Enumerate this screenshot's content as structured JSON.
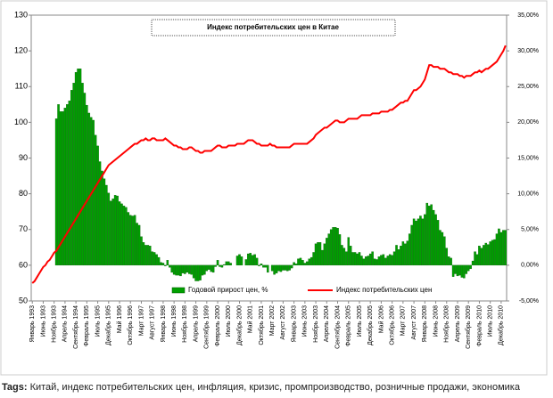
{
  "chart_data": {
    "type": "bar-line",
    "title": "Индекс потребительских цен в Китае",
    "categories": [
      "Январь 1993",
      null,
      null,
      null,
      null,
      "Июнь 1993",
      null,
      null,
      null,
      null,
      "Ноябрь 1993",
      null,
      null,
      null,
      null,
      "Апрель 1994",
      null,
      null,
      null,
      null,
      "Сентябрь 1994",
      null,
      null,
      null,
      null,
      "Февраль 1995",
      null,
      null,
      null,
      null,
      "Июль 1995",
      null,
      null,
      null,
      null,
      "Декабрь 1995",
      null,
      null,
      null,
      null,
      "Май 1996",
      null,
      null,
      null,
      null,
      "Октябрь 1996",
      null,
      null,
      null,
      null,
      "Март 1997",
      null,
      null,
      null,
      null,
      "Август 1997",
      null,
      null,
      null,
      null,
      "Январь 1998",
      null,
      null,
      null,
      null,
      "Июнь 1998",
      null,
      null,
      null,
      null,
      "Ноябрь 1998",
      null,
      null,
      null,
      null,
      "Апрель 1999",
      null,
      null,
      null,
      null,
      "Сентябрь 1999",
      null,
      null,
      null,
      null,
      "Февраль 2000",
      null,
      null,
      null,
      null,
      "Июль 2000",
      null,
      null,
      null,
      null,
      "Декабрь 2000",
      null,
      null,
      null,
      null,
      "Май 2001",
      null,
      null,
      null,
      null,
      "Октябрь 2001",
      null,
      null,
      null,
      null,
      "Март 2002",
      null,
      null,
      null,
      null,
      "Август 2002",
      null,
      null,
      null,
      null,
      "Январь 2003",
      null,
      null,
      null,
      null,
      "Июнь 2003",
      null,
      null,
      null,
      null,
      "Ноябрь 2003",
      null,
      null,
      null,
      null,
      "Апрель 2004",
      null,
      null,
      null,
      null,
      "Сентябрь 2004",
      null,
      null,
      null,
      null,
      "Февраль 2005",
      null,
      null,
      null,
      null,
      "Июль 2005",
      null,
      null,
      null,
      null,
      "Декабрь 2005",
      null,
      null,
      null,
      null,
      "Май 2006",
      null,
      null,
      null,
      null,
      "Октябрь 2006",
      null,
      null,
      null,
      null,
      "Март 2007",
      null,
      null,
      null,
      null,
      "Август 2007",
      null,
      null,
      null,
      null,
      "Январь 2008",
      null,
      null,
      null,
      null,
      "Июнь 2008",
      null,
      null,
      null,
      null,
      "Ноябрь 2008",
      null,
      null,
      null,
      null,
      "Апрель 2009",
      null,
      null,
      null,
      null,
      "Сентябрь 2009",
      null,
      null,
      null,
      null,
      "Февраль 2010",
      null,
      null,
      null,
      null,
      "Июль 2010",
      null,
      null,
      null,
      null,
      "Декабрь 2010",
      null,
      null
    ],
    "series": [
      {
        "name": "Годовой прирост цен, %",
        "type": "bar",
        "axis": "y2",
        "color": "#00a000",
        "values": [
          null,
          null,
          null,
          null,
          null,
          null,
          null,
          null,
          null,
          null,
          null,
          20.5,
          22.5,
          21.5,
          21.5,
          22,
          22.5,
          23,
          24.5,
          25.5,
          27,
          27.5,
          27.5,
          25.5,
          24.1,
          22.4,
          21.3,
          20.7,
          20.3,
          18.2,
          16.7,
          14.5,
          13.2,
          12.1,
          11.2,
          10.1,
          9,
          9.3,
          9.8,
          9.7,
          8.9,
          8.6,
          8.3,
          8.1,
          7.4,
          7,
          6.9,
          7,
          5.9,
          5.6,
          4,
          3.2,
          2.8,
          2.8,
          2.7,
          1.9,
          1.8,
          1.5,
          1.1,
          0.4,
          0.3,
          -0.1,
          0.7,
          -0.3,
          -1,
          -1.3,
          -1.4,
          -1.4,
          -1.5,
          -1.1,
          -1.2,
          -1,
          -1.2,
          -1.3,
          -1.8,
          -2.2,
          -2.2,
          -2.1,
          -1.4,
          -1.3,
          -0.8,
          -0.6,
          -0.9,
          -1,
          -0.2,
          0.7,
          -0.2,
          -0.3,
          0.1,
          0.5,
          0.5,
          0.3,
          0,
          0,
          1.3,
          1.5,
          1.2,
          0,
          0.8,
          1.6,
          1.7,
          1.4,
          1.5,
          1,
          -0.1,
          0.2,
          -0.3,
          -0.3,
          -1,
          0,
          -0.8,
          -1.3,
          -1.1,
          -0.8,
          -0.9,
          -0.7,
          -0.7,
          -0.8,
          -0.7,
          -0.4,
          0.4,
          0.2,
          0.9,
          1,
          0.7,
          0.3,
          0.5,
          0.9,
          1.1,
          1.8,
          3,
          3.2,
          3.2,
          2.1,
          3,
          3.8,
          4.4,
          5,
          5.3,
          5.3,
          5.2,
          4.3,
          2.8,
          2.4,
          1.9,
          3.9,
          2.7,
          1.8,
          1.8,
          1.6,
          1.8,
          1.3,
          0.9,
          1.2,
          1.3,
          1.6,
          1.9,
          0.9,
          0.8,
          1.2,
          1.4,
          1.5,
          1,
          1.3,
          1.5,
          1.4,
          1.9,
          2.8,
          2.2,
          2.7,
          3.3,
          3,
          3.4,
          4.4,
          5.6,
          6.5,
          6.2,
          6.5,
          6.9,
          6.5,
          7.1,
          8.7,
          8.3,
          8.5,
          7.7,
          7.1,
          6.3,
          4.9,
          4.6,
          4,
          2.4,
          1.2,
          1,
          -1.6,
          -1.2,
          -1.5,
          -1.4,
          -1.7,
          -1.8,
          -1.2,
          -0.8,
          -0.5,
          0.6,
          1.9,
          1.5,
          2.7,
          2.4,
          2.8,
          3.1,
          2.9,
          3.3,
          3.5,
          3.6,
          4.4,
          5.1,
          4.6,
          4.9,
          4.9
        ]
      },
      {
        "name": "Индекс потребительских цен",
        "type": "line",
        "axis": "y",
        "color": "#ff0000",
        "values": [
          55,
          55.5,
          56.5,
          57.5,
          58.5,
          59.5,
          60,
          61,
          61.5,
          62.5,
          63.5,
          64,
          65,
          66,
          67,
          68,
          69,
          70,
          71,
          72,
          73,
          74,
          75,
          76,
          77,
          78,
          79,
          80,
          81,
          82,
          83,
          84,
          85,
          86,
          87,
          88,
          88.5,
          89,
          89.5,
          90,
          90.5,
          91,
          91.5,
          92,
          92.5,
          93,
          93.5,
          94,
          94,
          94.5,
          95,
          95,
          95.5,
          95,
          95,
          95.5,
          95.5,
          95,
          95,
          95,
          95,
          95.5,
          95,
          94.5,
          94,
          93.5,
          93.5,
          93,
          93,
          92.5,
          92.5,
          92.5,
          93,
          93,
          92.5,
          92,
          92,
          91.5,
          91.5,
          92,
          92,
          92,
          92,
          92.5,
          93,
          93.5,
          93.5,
          93,
          93,
          93,
          93.5,
          93.5,
          93.5,
          93.5,
          94,
          94,
          94,
          94,
          94.5,
          95,
          95,
          95,
          94.5,
          94,
          94,
          93.5,
          93.5,
          93.5,
          93.5,
          94,
          93.5,
          93.5,
          93,
          93,
          93,
          93,
          93,
          93,
          93,
          93.5,
          94,
          94,
          94,
          94,
          94,
          94,
          94,
          94.5,
          95,
          95.5,
          96.5,
          97,
          97.5,
          98,
          98.5,
          98.5,
          99,
          99.5,
          100,
          100.5,
          100.5,
          100,
          100,
          100,
          100.5,
          101,
          101,
          101,
          101,
          101,
          101.5,
          102,
          102,
          102,
          102,
          102,
          102.5,
          102.5,
          102.5,
          102.5,
          103,
          103,
          103,
          103,
          103.5,
          103.5,
          104,
          104.5,
          105,
          105.5,
          105.5,
          106,
          106,
          107,
          108,
          109,
          109,
          109.5,
          110,
          111,
          112,
          114,
          116,
          116,
          115.5,
          115.5,
          115.5,
          115,
          115,
          115,
          114.5,
          114,
          114,
          113.5,
          113.5,
          113.5,
          113,
          113,
          112.5,
          113,
          113,
          113,
          113.5,
          114,
          114,
          114.5,
          114,
          114.5,
          115,
          115,
          115.5,
          116,
          116.5,
          117,
          118,
          119,
          120,
          121.5
        ]
      }
    ],
    "ylim": [
      50,
      130
    ],
    "yticks": [
      50,
      60,
      70,
      80,
      90,
      100,
      110,
      120,
      130
    ],
    "y2lim": [
      -5,
      35
    ],
    "y2ticks": [
      {
        "value": -5,
        "label": "-5,00%"
      },
      {
        "value": 0,
        "label": "0,00%"
      },
      {
        "value": 5,
        "label": "5,00%"
      },
      {
        "value": 10,
        "label": "10,00%"
      },
      {
        "value": 15,
        "label": "15,00%"
      },
      {
        "value": 20,
        "label": "20,00%"
      },
      {
        "value": 25,
        "label": "25,00%"
      },
      {
        "value": 30,
        "label": "30,00%"
      },
      {
        "value": 35,
        "label": "35,00%"
      }
    ],
    "legend": "bottom"
  },
  "tags": {
    "label": "Tags:",
    "text": "Китай, индекс потребительских цен, инфляция, кризис, промпроизводство, розничные продажи, экономика"
  }
}
